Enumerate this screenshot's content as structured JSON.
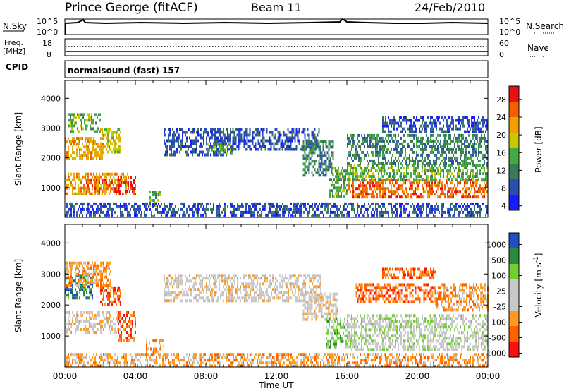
{
  "header": {
    "station": "Prince George (fitACF)",
    "beam": "Beam 11",
    "date": "24/Feb/2010"
  },
  "noise_panel": {
    "left_label": "N.Sky",
    "left_ticks": [
      "10^5",
      "10^0"
    ],
    "right_ticks": [
      "10^5",
      "10^0"
    ],
    "right_label": "N.Search"
  },
  "freq_panel": {
    "left_label_1": "Freq.",
    "left_label_2": "[MHz]",
    "left_ticks": [
      "18",
      "8"
    ],
    "right_ticks": [
      "60",
      "0"
    ],
    "right_label": "Nave"
  },
  "cpid_panel": {
    "left_label": "CPID",
    "program": "normalsound (fast) 157"
  },
  "time_axis": {
    "ticks": [
      "00:00",
      "04:00",
      "08:00",
      "12:00",
      "16:00",
      "20:00",
      "00:00"
    ],
    "label": "Time UT"
  },
  "colors": {
    "power": [
      "#1a1aff",
      "#2a4fb0",
      "#3a7a5a",
      "#44aa44",
      "#c8c800",
      "#f0a000",
      "#f06000",
      "#e81010"
    ],
    "velocity": [
      "#ff1010",
      "#ff6000",
      "#ff9a20",
      "#c8c8c8",
      "#c8c8c8",
      "#70d030",
      "#2a8a40",
      "#2050c0"
    ]
  },
  "chart_data": [
    {
      "type": "heatmap",
      "name": "power",
      "ylabel": "Slant Range [km]",
      "xlabel": "",
      "ylim": [
        0,
        4600
      ],
      "y_ticks": [
        "1000",
        "2000",
        "3000",
        "4000"
      ],
      "colorbar_label": "Power [dB]",
      "colorbar_ticks": [
        "28",
        "24",
        "20",
        "16",
        "12",
        "8",
        "4"
      ],
      "regions": [
        {
          "t0": 0.0,
          "t1": 3.6,
          "r0": 800,
          "r1": 1500,
          "level": 5
        },
        {
          "t0": 1.2,
          "t1": 3.0,
          "r0": 900,
          "r1": 1300,
          "level": 6
        },
        {
          "t0": 3.0,
          "t1": 4.0,
          "r0": 800,
          "r1": 1400,
          "level": 7
        },
        {
          "t0": 0.0,
          "t1": 2.2,
          "r0": 2000,
          "r1": 2700,
          "level": 5
        },
        {
          "t0": 0.2,
          "t1": 2.0,
          "r0": 2900,
          "r1": 3500,
          "level": 3
        },
        {
          "t0": 2.0,
          "t1": 3.2,
          "r0": 2200,
          "r1": 3000,
          "level": 4
        },
        {
          "t0": 4.8,
          "t1": 5.4,
          "r0": 400,
          "r1": 900,
          "level": 3
        },
        {
          "t0": 5.6,
          "t1": 9.5,
          "r0": 2100,
          "r1": 3000,
          "level": 1
        },
        {
          "t0": 8.0,
          "t1": 9.5,
          "r0": 2200,
          "r1": 2500,
          "level": 3
        },
        {
          "t0": 9.5,
          "t1": 14.5,
          "r0": 2300,
          "r1": 3000,
          "level": 1
        },
        {
          "t0": 13.5,
          "t1": 15.2,
          "r0": 1400,
          "r1": 2600,
          "level": 2
        },
        {
          "t0": 15.0,
          "t1": 16.0,
          "r0": 700,
          "r1": 1700,
          "level": 3
        },
        {
          "t0": 16.0,
          "t1": 24.0,
          "r0": 700,
          "r1": 1300,
          "level": 6
        },
        {
          "t0": 16.0,
          "t1": 24.0,
          "r0": 1300,
          "r1": 1800,
          "level": 3
        },
        {
          "t0": 16.0,
          "t1": 24.0,
          "r0": 1800,
          "r1": 2800,
          "level": 2
        },
        {
          "t0": 18.0,
          "t1": 24.0,
          "r0": 2900,
          "r1": 3400,
          "level": 1
        },
        {
          "t0": 0.0,
          "t1": 24.0,
          "r0": 100,
          "r1": 500,
          "level": 1
        }
      ]
    },
    {
      "type": "heatmap",
      "name": "velocity",
      "ylabel": "Slant Range [km]",
      "xlabel": "Time UT",
      "ylim": [
        0,
        4600
      ],
      "y_ticks": [
        "1000",
        "2000",
        "3000",
        "4000"
      ],
      "colorbar_label": "Velocity [m s^-1]",
      "colorbar_ticks": [
        "1000",
        "500",
        "100",
        "25",
        "-25",
        "-100",
        "-500",
        "-1000"
      ],
      "regions": [
        {
          "t0": 0.0,
          "t1": 3.2,
          "r0": 1100,
          "r1": 1800,
          "level": 3
        },
        {
          "t0": 3.0,
          "t1": 4.0,
          "r0": 800,
          "r1": 1800,
          "level": 1
        },
        {
          "t0": 0.0,
          "t1": 1.6,
          "r0": 2200,
          "r1": 3000,
          "level": 6
        },
        {
          "t0": 0.0,
          "t1": 2.6,
          "r0": 2600,
          "r1": 3400,
          "level": 2
        },
        {
          "t0": 2.0,
          "t1": 3.2,
          "r0": 2000,
          "r1": 2600,
          "level": 1
        },
        {
          "t0": 4.6,
          "t1": 5.6,
          "r0": 300,
          "r1": 900,
          "level": 2
        },
        {
          "t0": 5.6,
          "t1": 14.5,
          "r0": 2100,
          "r1": 3000,
          "level": 3
        },
        {
          "t0": 13.5,
          "t1": 15.5,
          "r0": 1500,
          "r1": 2400,
          "level": 3
        },
        {
          "t0": 14.8,
          "t1": 16.0,
          "r0": 600,
          "r1": 1600,
          "level": 5
        },
        {
          "t0": 16.0,
          "t1": 24.0,
          "r0": 600,
          "r1": 1700,
          "level": 4
        },
        {
          "t0": 16.5,
          "t1": 21.0,
          "r0": 2100,
          "r1": 2700,
          "level": 1
        },
        {
          "t0": 21.0,
          "t1": 24.0,
          "r0": 1800,
          "r1": 2700,
          "level": 2
        },
        {
          "t0": 18.0,
          "t1": 21.0,
          "r0": 2900,
          "r1": 3200,
          "level": 1
        },
        {
          "t0": 0.0,
          "t1": 24.0,
          "r0": 50,
          "r1": 450,
          "level": 2
        }
      ]
    }
  ]
}
